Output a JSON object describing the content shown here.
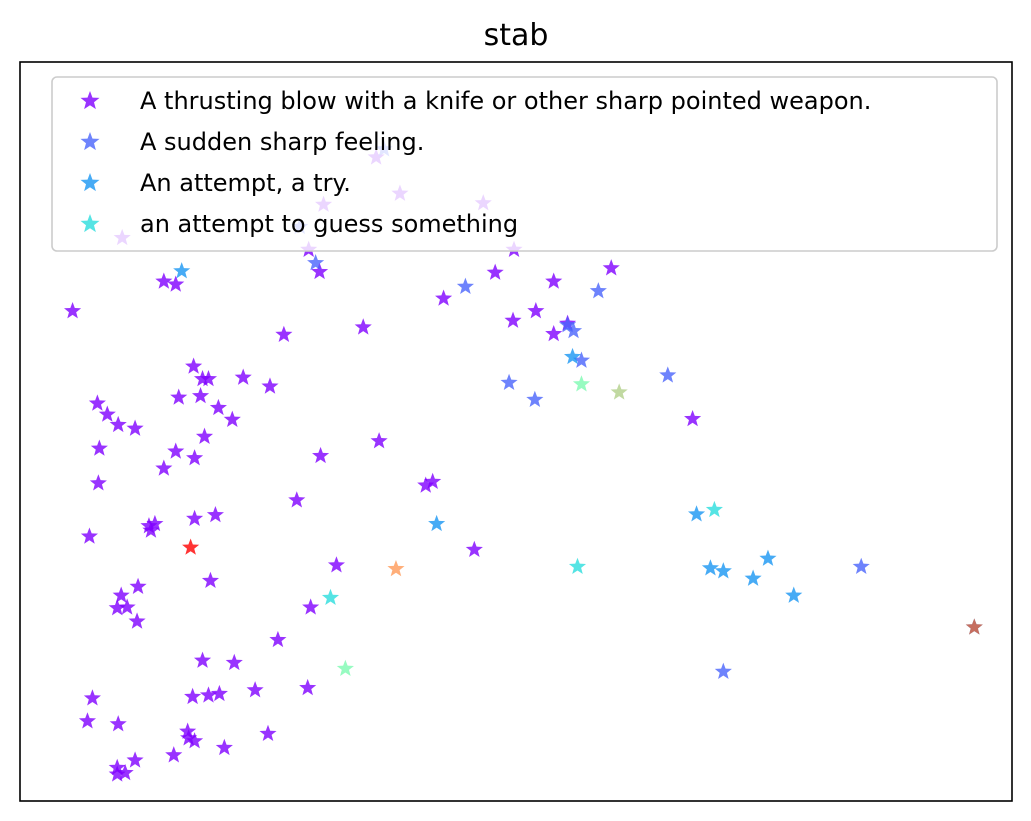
{
  "chart_data": {
    "type": "scatter",
    "title": "stab",
    "xlabel": "",
    "ylabel": "",
    "xlim": [
      0,
      100
    ],
    "ylim": [
      0,
      100
    ],
    "grid": false,
    "axis_ticks": false,
    "legend_position": "upper-right",
    "marker": "star",
    "series": [
      {
        "name": "A thrusting blow with a knife or other sharp pointed weapon.",
        "color": "#8000ff",
        "points": [
          [
            15.7,
            69.9
          ],
          [
            14.5,
            70.3
          ],
          [
            17.5,
            58.8
          ],
          [
            15.7,
            47.3
          ],
          [
            16.0,
            54.6
          ],
          [
            18.2,
            54.8
          ],
          [
            13.0,
            37.2
          ],
          [
            17.6,
            38.2
          ],
          [
            13.2,
            36.6
          ],
          [
            19.7,
            38.7
          ],
          [
            7.9,
            43.0
          ],
          [
            11.6,
            50.4
          ],
          [
            5.3,
            66.3
          ],
          [
            10.3,
            76.2
          ],
          [
            7.0,
            35.8
          ],
          [
            9.8,
            26.1
          ],
          [
            10.8,
            26.2
          ],
          [
            11.9,
            29.0
          ],
          [
            9.9,
            10.4
          ],
          [
            17.4,
            14.1
          ],
          [
            19.0,
            14.3
          ],
          [
            20.1,
            14.5
          ],
          [
            19.2,
            29.8
          ],
          [
            26.0,
            21.8
          ],
          [
            29.0,
            15.3
          ],
          [
            31.9,
            31.9
          ],
          [
            30.3,
            46.7
          ],
          [
            27.9,
            40.7
          ],
          [
            29.3,
            26.2
          ],
          [
            36.2,
            48.7
          ],
          [
            34.6,
            64.1
          ],
          [
            30.2,
            71.6
          ],
          [
            41.6,
            43.2
          ],
          [
            40.9,
            42.7
          ],
          [
            42.7,
            68.0
          ],
          [
            45.8,
            34.0
          ],
          [
            47.9,
            71.5
          ],
          [
            49.8,
            74.6
          ],
          [
            49.7,
            65.0
          ],
          [
            52.0,
            66.3
          ],
          [
            55.2,
            64.6
          ],
          [
            53.8,
            63.2
          ],
          [
            53.8,
            70.3
          ],
          [
            59.6,
            72.1
          ],
          [
            67.8,
            51.7
          ],
          [
            6.8,
            10.8
          ],
          [
            7.3,
            13.9
          ],
          [
            9.8,
            4.5
          ],
          [
            9.8,
            3.6
          ],
          [
            10.6,
            3.8
          ],
          [
            11.6,
            5.5
          ],
          [
            15.5,
            6.2
          ],
          [
            17.0,
            8.5
          ],
          [
            17.6,
            8.1
          ],
          [
            20.6,
            7.2
          ],
          [
            16.9,
            9.4
          ],
          [
            7.8,
            53.8
          ],
          [
            8.8,
            52.3
          ],
          [
            8.0,
            47.7
          ],
          [
            9.9,
            50.9
          ],
          [
            13.6,
            37.5
          ],
          [
            14.5,
            45.0
          ],
          [
            17.6,
            46.4
          ],
          [
            18.6,
            49.3
          ],
          [
            21.4,
            51.6
          ],
          [
            20.0,
            53.2
          ],
          [
            10.2,
            27.8
          ],
          [
            11.8,
            24.3
          ],
          [
            18.4,
            19.0
          ],
          [
            21.6,
            18.7
          ],
          [
            25.0,
            9.1
          ],
          [
            23.7,
            15.0
          ],
          [
            25.2,
            56.1
          ],
          [
            26.6,
            63.1
          ],
          [
            18.4,
            57.1
          ],
          [
            19.0,
            57.1
          ],
          [
            22.5,
            57.3
          ],
          [
            29.1,
            74.6
          ],
          [
            30.6,
            80.7
          ],
          [
            35.9,
            87.1
          ],
          [
            38.3,
            82.2
          ],
          [
            46.7,
            80.9
          ]
        ]
      },
      {
        "name": "A sudden sharp feeling.",
        "color": "#4a64fb",
        "points": [
          [
            28.2,
            77.7
          ],
          [
            29.8,
            72.8
          ],
          [
            36.7,
            88.2
          ],
          [
            44.9,
            69.6
          ],
          [
            49.3,
            56.6
          ],
          [
            55.2,
            64.4
          ],
          [
            55.8,
            63.6
          ],
          [
            58.3,
            69.0
          ],
          [
            65.3,
            57.6
          ],
          [
            70.9,
            17.5
          ],
          [
            84.8,
            31.7
          ],
          [
            51.9,
            54.3
          ],
          [
            56.6,
            59.6
          ]
        ]
      },
      {
        "name": "An attempt, a try.",
        "color": "#1996f3",
        "points": [
          [
            16.3,
            71.7
          ],
          [
            42.0,
            37.5
          ],
          [
            55.7,
            60.1
          ],
          [
            68.2,
            38.8
          ],
          [
            69.6,
            31.5
          ],
          [
            70.9,
            31.1
          ],
          [
            73.9,
            30.1
          ],
          [
            75.4,
            32.8
          ],
          [
            78.0,
            27.8
          ],
          [
            96.2,
            23.5
          ]
        ]
      },
      {
        "name": "an attempt to guess something",
        "color": "#2adddd",
        "points": [
          [
            31.3,
            27.5
          ],
          [
            56.2,
            31.7
          ],
          [
            70.0,
            39.4
          ]
        ]
      },
      {
        "name": "",
        "color": "#ff0000",
        "points": [
          [
            17.2,
            34.3
          ]
        ]
      },
      {
        "name": "",
        "color": "#ff9a57",
        "points": [
          [
            37.9,
            31.4
          ]
        ]
      },
      {
        "name": "",
        "color": "#7dfab2",
        "points": [
          [
            32.8,
            17.9
          ],
          [
            56.6,
            56.4
          ]
        ]
      },
      {
        "name": "",
        "color": "#b2d08a",
        "points": [
          [
            60.4,
            55.3
          ]
        ]
      },
      {
        "name": "",
        "color": "#e65f3a",
        "points": [
          [
            96.2,
            23.5
          ]
        ]
      }
    ]
  }
}
